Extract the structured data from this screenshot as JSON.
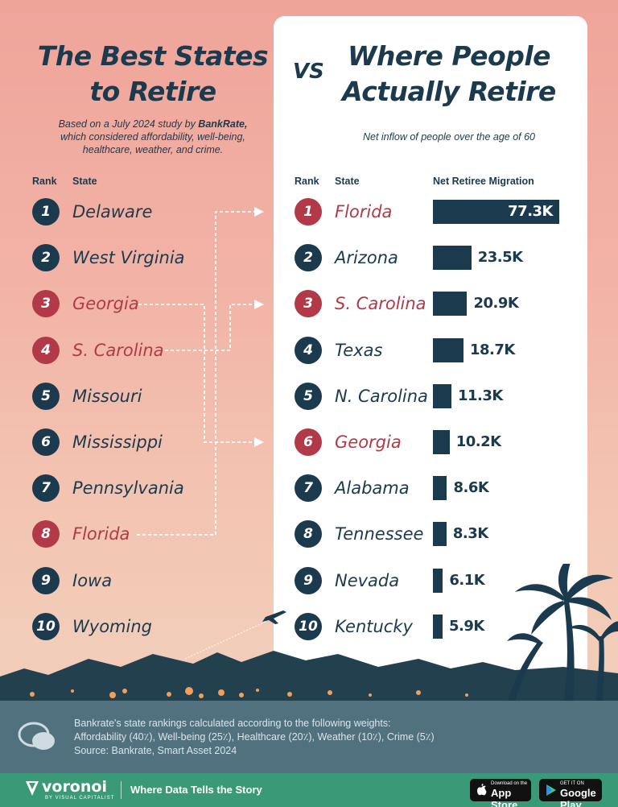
{
  "left": {
    "title_line1": "The Best States",
    "title_line2": "to Retire",
    "subtitle_pre": "Based on a July 2024 study by ",
    "subtitle_brand": "BankRate,",
    "subtitle_line2": "which considered affordability, well-being,",
    "subtitle_line3": "healthcare, weather, and crime.",
    "rank_header": "Rank",
    "state_header": "State",
    "rows": [
      {
        "rank": "1",
        "state": "Delaware",
        "highlight": false
      },
      {
        "rank": "2",
        "state": "West Virginia",
        "highlight": false
      },
      {
        "rank": "3",
        "state": "Georgia",
        "highlight": true
      },
      {
        "rank": "4",
        "state": "S. Carolina",
        "highlight": true
      },
      {
        "rank": "5",
        "state": "Missouri",
        "highlight": false
      },
      {
        "rank": "6",
        "state": "Mississippi",
        "highlight": false
      },
      {
        "rank": "7",
        "state": "Pennsylvania",
        "highlight": false
      },
      {
        "rank": "8",
        "state": "Florida",
        "highlight": true
      },
      {
        "rank": "9",
        "state": "Iowa",
        "highlight": false
      },
      {
        "rank": "10",
        "state": "Wyoming",
        "highlight": false
      }
    ]
  },
  "vs_label": "VS",
  "right": {
    "title_line1": "Where People",
    "title_line2": "Actually Retire",
    "subtitle": "Net inflow of people over the age of 60",
    "rank_header": "Rank",
    "state_header": "State",
    "value_header": "Net Retiree Migration"
  },
  "chart_data": {
    "type": "bar",
    "orientation": "horizontal",
    "title": "Where People Actually Retire",
    "subtitle": "Net inflow of people over the age of 60",
    "value_label": "Net Retiree Migration",
    "categories": [
      "Florida",
      "Arizona",
      "S. Carolina",
      "Texas",
      "N. Carolina",
      "Georgia",
      "Alabama",
      "Tennessee",
      "Nevada",
      "Kentucky"
    ],
    "ranks": [
      "1",
      "2",
      "3",
      "4",
      "5",
      "6",
      "7",
      "8",
      "9",
      "10"
    ],
    "values": [
      77300,
      23500,
      20900,
      18700,
      11300,
      10200,
      8600,
      8300,
      6100,
      5900
    ],
    "value_labels": [
      "77.3K",
      "23.5K",
      "20.9K",
      "18.7K",
      "11.3K",
      "10.2K",
      "8.6K",
      "8.3K",
      "6.1K",
      "5.9K"
    ],
    "highlight": [
      true,
      false,
      true,
      false,
      false,
      true,
      false,
      false,
      false,
      false
    ],
    "xlim": [
      0,
      77300
    ]
  },
  "footer": {
    "note_line1": "Bankrate's state rankings calculated according to the following weights:",
    "note_line2": "Affordability (40٪), Well-being (25٪), Healthcare (20٪), Weather (10٪), Crime (5٪)",
    "note_line3": "Source: Bankrate, Smart Asset 2024",
    "logo": "voronoi",
    "logo_sub": "BY VISUAL CAPITALIST",
    "tagline": "Where Data Tells the Story",
    "appstore_small": "Download on the",
    "appstore_big": "App Store",
    "play_small": "GET IT ON",
    "play_big": "Google Play"
  },
  "colors": {
    "navy": "#1c3a4d",
    "highlight_red": "#b23a48",
    "panel": "#ffffff",
    "footer_notes": "#52717f",
    "brand_green": "#3a9a78"
  }
}
